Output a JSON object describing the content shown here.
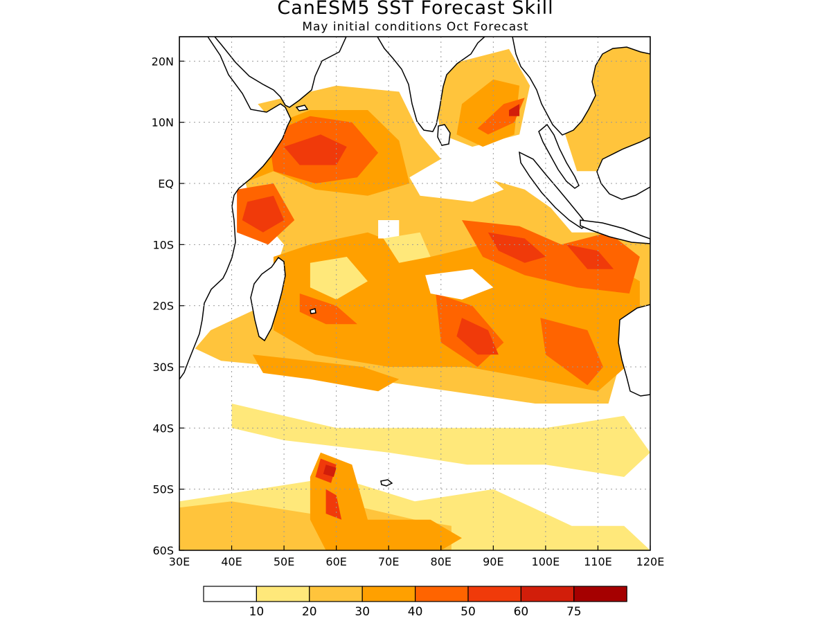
{
  "title": "CanESM5 SST Forecast Skill",
  "subtitle": "May initial conditions  Oct Forecast",
  "map": {
    "lon_range": [
      30,
      120
    ],
    "lat_range": [
      -60,
      24
    ],
    "lon_ticks": [
      {
        "value": 30,
        "label": "30E"
      },
      {
        "value": 40,
        "label": "40E"
      },
      {
        "value": 50,
        "label": "50E"
      },
      {
        "value": 60,
        "label": "60E"
      },
      {
        "value": 70,
        "label": "70E"
      },
      {
        "value": 80,
        "label": "80E"
      },
      {
        "value": 90,
        "label": "90E"
      },
      {
        "value": 100,
        "label": "100E"
      },
      {
        "value": 110,
        "label": "110E"
      },
      {
        "value": 120,
        "label": "120E"
      }
    ],
    "lat_ticks": [
      {
        "value": 20,
        "label": "20N"
      },
      {
        "value": 10,
        "label": "10N"
      },
      {
        "value": 0,
        "label": "EQ"
      },
      {
        "value": -10,
        "label": "10S"
      },
      {
        "value": -20,
        "label": "20S"
      },
      {
        "value": -30,
        "label": "30S"
      },
      {
        "value": -40,
        "label": "40S"
      },
      {
        "value": -50,
        "label": "50S"
      },
      {
        "value": -60,
        "label": "60S"
      }
    ],
    "grid": true
  },
  "colorbar": {
    "colors": [
      "#ffffff",
      "#ffe87a",
      "#ffc43c",
      "#ffa000",
      "#ff6400",
      "#f03a0a",
      "#d21e0a",
      "#a50000"
    ],
    "labels": [
      "10",
      "20",
      "30",
      "40",
      "50",
      "60",
      "75"
    ]
  },
  "skill_regions": [
    {
      "level": 2,
      "points": [
        [
          45,
          13
        ],
        [
          60,
          16
        ],
        [
          72,
          15
        ],
        [
          76,
          8
        ],
        [
          80,
          4
        ],
        [
          88,
          1
        ],
        [
          96,
          -1
        ],
        [
          101,
          -4
        ],
        [
          105,
          -8
        ],
        [
          112,
          -8
        ],
        [
          120,
          -10
        ],
        [
          120,
          -24
        ],
        [
          114,
          -30
        ],
        [
          112,
          -36
        ],
        [
          98,
          -36
        ],
        [
          82,
          -34
        ],
        [
          66,
          -32
        ],
        [
          50,
          -30
        ],
        [
          38,
          -29
        ],
        [
          33,
          -27
        ],
        [
          36,
          -24
        ],
        [
          46,
          -20
        ],
        [
          50,
          -10
        ],
        [
          44,
          -4
        ],
        [
          42,
          2
        ],
        [
          48,
          10
        ]
      ]
    },
    {
      "level": 2,
      "points": [
        [
          78,
          18
        ],
        [
          84,
          20
        ],
        [
          93,
          22
        ],
        [
          97,
          16
        ],
        [
          95,
          8
        ],
        [
          86,
          6
        ],
        [
          80,
          8
        ]
      ]
    },
    {
      "level": 2,
      "points": [
        [
          104,
          20
        ],
        [
          108,
          23
        ],
        [
          120,
          24
        ],
        [
          120,
          6
        ],
        [
          114,
          2
        ],
        [
          106,
          2
        ],
        [
          103,
          10
        ]
      ]
    },
    {
      "level": 1,
      "points": [
        [
          40,
          -36
        ],
        [
          60,
          -40
        ],
        [
          80,
          -40
        ],
        [
          100,
          -40
        ],
        [
          115,
          -38
        ],
        [
          120,
          -44
        ],
        [
          115,
          -48
        ],
        [
          100,
          -46
        ],
        [
          85,
          -46
        ],
        [
          70,
          -44
        ],
        [
          50,
          -42
        ],
        [
          40,
          -40
        ]
      ]
    },
    {
      "level": 1,
      "points": [
        [
          30,
          -52
        ],
        [
          45,
          -50
        ],
        [
          60,
          -48
        ],
        [
          75,
          -52
        ],
        [
          90,
          -50
        ],
        [
          105,
          -56
        ],
        [
          115,
          -56
        ],
        [
          120,
          -60
        ],
        [
          30,
          -60
        ]
      ]
    },
    {
      "level": 2,
      "points": [
        [
          30,
          -53
        ],
        [
          40,
          -52
        ],
        [
          55,
          -54
        ],
        [
          65,
          -53
        ],
        [
          75,
          -55
        ],
        [
          82,
          -56
        ],
        [
          82,
          -60
        ],
        [
          30,
          -60
        ]
      ]
    },
    {
      "level": 3,
      "points": [
        [
          44,
          -28
        ],
        [
          55,
          -29
        ],
        [
          65,
          -30
        ],
        [
          72,
          -32
        ],
        [
          68,
          -34
        ],
        [
          55,
          -32
        ],
        [
          46,
          -31
        ]
      ]
    },
    {
      "level": 3,
      "points": [
        [
          48,
          -12
        ],
        [
          55,
          -10
        ],
        [
          66,
          -8
        ],
        [
          78,
          -12
        ],
        [
          88,
          -10
        ],
        [
          100,
          -12
        ],
        [
          110,
          -12
        ],
        [
          118,
          -16
        ],
        [
          118,
          -28
        ],
        [
          110,
          -34
        ],
        [
          98,
          -32
        ],
        [
          85,
          -30
        ],
        [
          70,
          -30
        ],
        [
          56,
          -28
        ],
        [
          48,
          -24
        ],
        [
          48,
          -18
        ]
      ]
    },
    {
      "level": 3,
      "points": [
        [
          46,
          9
        ],
        [
          55,
          12
        ],
        [
          66,
          12
        ],
        [
          72,
          7
        ],
        [
          74,
          0
        ],
        [
          66,
          -2
        ],
        [
          56,
          -1
        ],
        [
          48,
          2
        ],
        [
          42,
          0
        ]
      ]
    },
    {
      "level": 3,
      "points": [
        [
          84,
          13
        ],
        [
          90,
          17
        ],
        [
          95,
          16
        ],
        [
          94,
          8
        ],
        [
          88,
          6
        ],
        [
          83,
          8
        ]
      ]
    },
    {
      "level": 3,
      "points": [
        [
          57,
          -44
        ],
        [
          63,
          -46
        ],
        [
          66,
          -55
        ],
        [
          78,
          -55
        ],
        [
          84,
          -58
        ],
        [
          80,
          -60
        ],
        [
          58,
          -60
        ],
        [
          55,
          -55
        ],
        [
          55,
          -48
        ]
      ]
    },
    {
      "level": 4,
      "points": [
        [
          47,
          8
        ],
        [
          55,
          11
        ],
        [
          63,
          10
        ],
        [
          68,
          5
        ],
        [
          64,
          1
        ],
        [
          56,
          0
        ],
        [
          48,
          2
        ]
      ]
    },
    {
      "level": 4,
      "points": [
        [
          41,
          -1
        ],
        [
          48,
          0
        ],
        [
          52,
          -6
        ],
        [
          47,
          -10
        ],
        [
          41,
          -8
        ]
      ]
    },
    {
      "level": 4,
      "points": [
        [
          84,
          -6
        ],
        [
          95,
          -7
        ],
        [
          103,
          -10
        ],
        [
          112,
          -8
        ],
        [
          118,
          -12
        ],
        [
          116,
          -18
        ],
        [
          106,
          -17
        ],
        [
          96,
          -15
        ],
        [
          88,
          -12
        ]
      ]
    },
    {
      "level": 4,
      "points": [
        [
          79,
          -18
        ],
        [
          86,
          -20
        ],
        [
          92,
          -26
        ],
        [
          87,
          -30
        ],
        [
          80,
          -26
        ]
      ]
    },
    {
      "level": 4,
      "points": [
        [
          99,
          -22
        ],
        [
          108,
          -24
        ],
        [
          111,
          -30
        ],
        [
          108,
          -33
        ],
        [
          100,
          -28
        ]
      ]
    },
    {
      "level": 4,
      "points": [
        [
          87,
          9
        ],
        [
          92,
          13
        ],
        [
          96,
          14
        ],
        [
          94,
          10
        ],
        [
          89,
          8
        ]
      ]
    },
    {
      "level": 4,
      "points": [
        [
          53,
          -18
        ],
        [
          60,
          -20
        ],
        [
          64,
          -23
        ],
        [
          58,
          -23
        ],
        [
          53,
          -21
        ]
      ]
    },
    {
      "level": 5,
      "points": [
        [
          50,
          6
        ],
        [
          57,
          8
        ],
        [
          62,
          6
        ],
        [
          60,
          3
        ],
        [
          53,
          3
        ]
      ]
    },
    {
      "level": 5,
      "points": [
        [
          43,
          -3
        ],
        [
          48,
          -2
        ],
        [
          50,
          -6
        ],
        [
          46,
          -8
        ],
        [
          42,
          -6
        ]
      ]
    },
    {
      "level": 5,
      "points": [
        [
          89,
          -8
        ],
        [
          96,
          -9
        ],
        [
          100,
          -12
        ],
        [
          96,
          -13
        ],
        [
          91,
          -11
        ]
      ]
    },
    {
      "level": 5,
      "points": [
        [
          84,
          -22
        ],
        [
          89,
          -24
        ],
        [
          91,
          -28
        ],
        [
          87,
          -28
        ],
        [
          83,
          -25
        ]
      ]
    },
    {
      "level": 5,
      "points": [
        [
          57,
          -45
        ],
        [
          60,
          -46
        ],
        [
          59,
          -49
        ],
        [
          56,
          -48
        ]
      ]
    },
    {
      "level": 5,
      "points": [
        [
          58,
          -50
        ],
        [
          60,
          -51
        ],
        [
          61,
          -55
        ],
        [
          58,
          -54
        ]
      ]
    },
    {
      "level": 5,
      "points": [
        [
          104,
          -10
        ],
        [
          110,
          -11
        ],
        [
          113,
          -14
        ],
        [
          108,
          -14
        ]
      ]
    },
    {
      "level": 6,
      "points": [
        [
          58,
          -46
        ],
        [
          60,
          -46.5
        ],
        [
          59.5,
          -48
        ],
        [
          57.5,
          -47.5
        ]
      ]
    },
    {
      "level": 6,
      "points": [
        [
          93,
          12
        ],
        [
          95,
          13
        ],
        [
          95,
          11
        ],
        [
          93,
          11
        ]
      ]
    },
    {
      "level": 0,
      "points": [
        [
          74,
          1
        ],
        [
          80,
          4
        ],
        [
          88,
          2
        ],
        [
          92,
          -1
        ],
        [
          86,
          -3
        ],
        [
          76,
          -2
        ]
      ]
    },
    {
      "level": 0,
      "points": [
        [
          77,
          -15
        ],
        [
          86,
          -14
        ],
        [
          90,
          -17
        ],
        [
          84,
          -19
        ],
        [
          78,
          -18
        ]
      ]
    },
    {
      "level": 0,
      "points": [
        [
          68,
          -6
        ],
        [
          72,
          -6
        ],
        [
          72,
          -9
        ],
        [
          68,
          -9
        ]
      ]
    },
    {
      "level": 1,
      "points": [
        [
          55,
          -13
        ],
        [
          62,
          -12
        ],
        [
          66,
          -16
        ],
        [
          60,
          -19
        ],
        [
          55,
          -17
        ]
      ]
    },
    {
      "level": 1,
      "points": [
        [
          69,
          -9
        ],
        [
          76,
          -8
        ],
        [
          78,
          -12
        ],
        [
          72,
          -13
        ]
      ]
    }
  ]
}
